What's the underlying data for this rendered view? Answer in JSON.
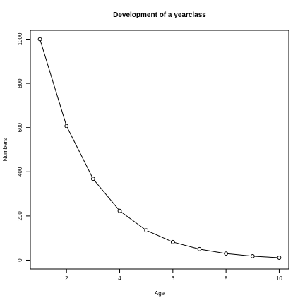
{
  "chart_data": {
    "type": "line",
    "title": "Development of a yearclass",
    "xlabel": "Age",
    "ylabel": "Numbers",
    "x": [
      1,
      2,
      3,
      4,
      5,
      6,
      7,
      8,
      9,
      10
    ],
    "series": [
      {
        "values": [
          1000,
          607,
          368,
          223,
          135,
          82,
          50,
          30,
          18,
          11
        ]
      }
    ],
    "xlim": [
      0.64,
      10.36
    ],
    "ylim": [
      -40,
      1040
    ],
    "xticks": [
      2,
      4,
      6,
      8,
      10
    ],
    "yticks": [
      0,
      200,
      400,
      600,
      800,
      1000
    ],
    "marker": "open-circle",
    "grid": false,
    "line_color": "#000000"
  }
}
